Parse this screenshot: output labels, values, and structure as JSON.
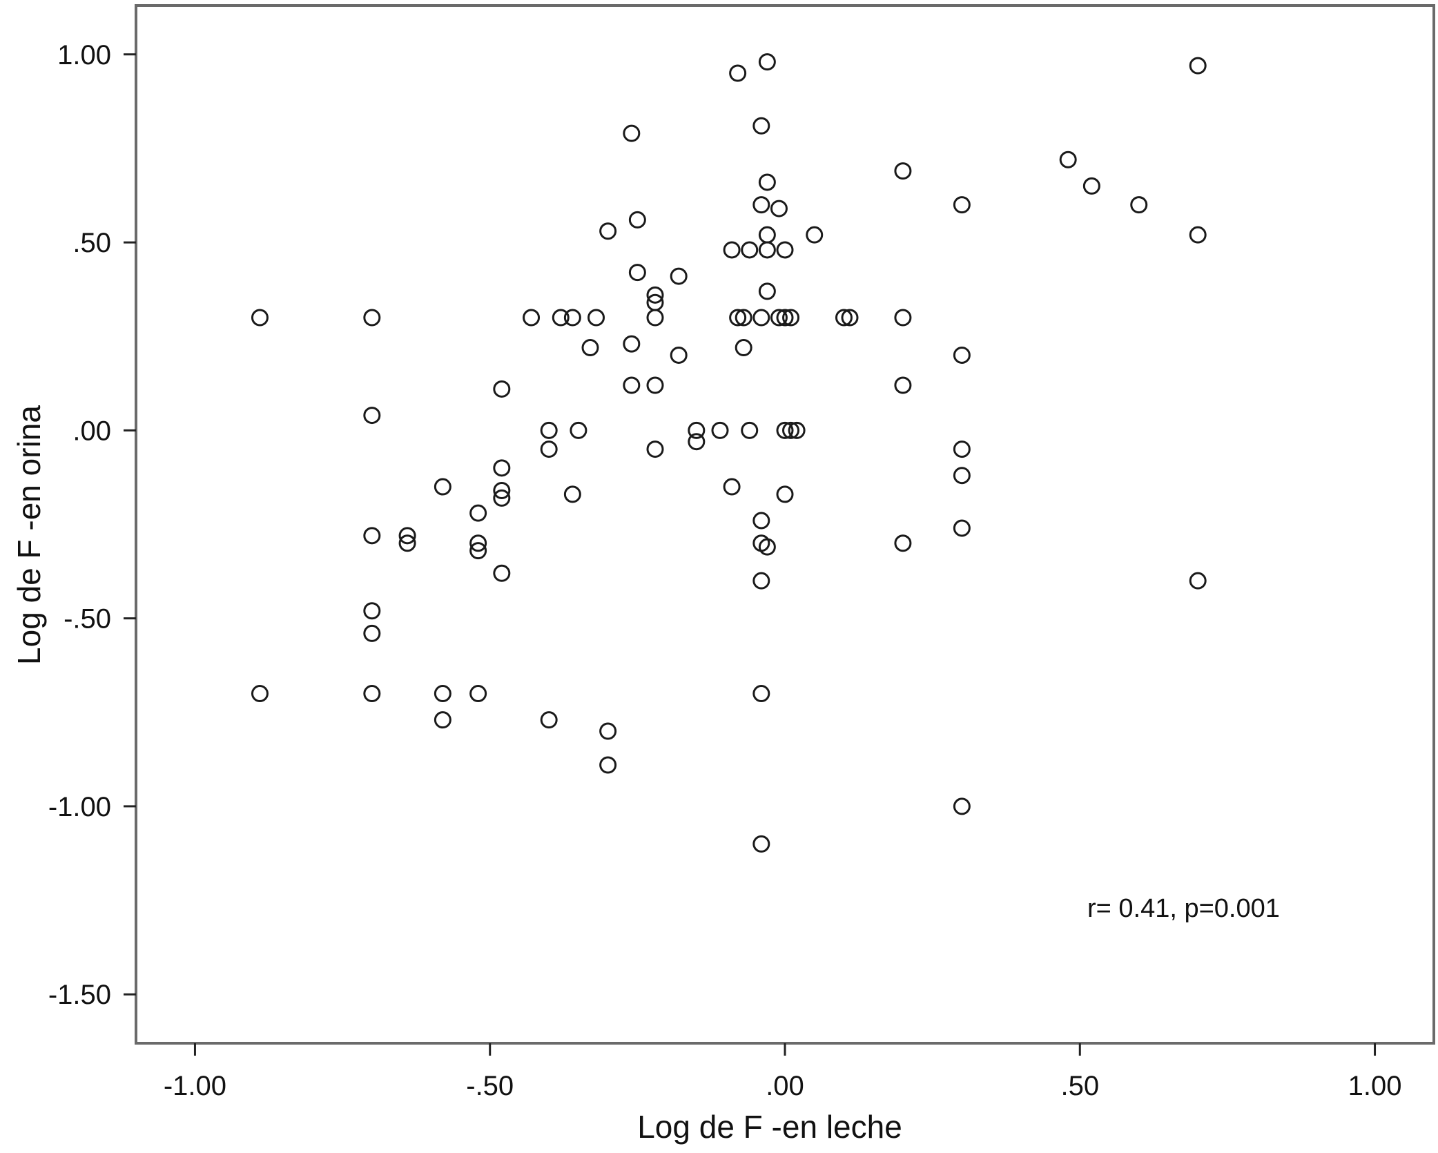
{
  "chart_data": {
    "type": "scatter",
    "xlabel": "Log de F -en leche",
    "ylabel": "Log de F -en orina",
    "xlim": [
      -1.1,
      1.1
    ],
    "ylim": [
      -1.63,
      1.13
    ],
    "x_ticks": [
      -1.0,
      -0.5,
      0.0,
      0.5,
      1.0
    ],
    "x_tick_labels": [
      "-1.00",
      "-.50",
      ".00",
      ".50",
      "1.00"
    ],
    "y_ticks": [
      1.0,
      0.5,
      0.0,
      -0.5,
      -1.0,
      -1.5
    ],
    "y_tick_labels": [
      "1.00",
      ".50",
      ".00",
      "-.50",
      "-1.00",
      "-1.50"
    ],
    "annotation": "r= 0.41, p=0.001",
    "grid": false,
    "marker": "open-circle",
    "colors": {
      "marker": "#1a1a1a",
      "frame": "#6a6a6a",
      "text": "#111111"
    },
    "points": [
      [
        -0.89,
        0.3
      ],
      [
        -0.89,
        -0.7
      ],
      [
        -0.7,
        0.3
      ],
      [
        -0.7,
        0.04
      ],
      [
        -0.7,
        -0.28
      ],
      [
        -0.7,
        -0.48
      ],
      [
        -0.7,
        -0.54
      ],
      [
        -0.7,
        -0.7
      ],
      [
        -0.64,
        -0.28
      ],
      [
        -0.64,
        -0.3
      ],
      [
        -0.58,
        -0.15
      ],
      [
        -0.58,
        -0.7
      ],
      [
        -0.58,
        -0.77
      ],
      [
        -0.52,
        -0.22
      ],
      [
        -0.52,
        -0.3
      ],
      [
        -0.52,
        -0.32
      ],
      [
        -0.52,
        -0.7
      ],
      [
        -0.48,
        0.11
      ],
      [
        -0.48,
        -0.1
      ],
      [
        -0.48,
        -0.16
      ],
      [
        -0.48,
        -0.18
      ],
      [
        -0.48,
        -0.38
      ],
      [
        -0.43,
        0.3
      ],
      [
        -0.4,
        0.0
      ],
      [
        -0.4,
        -0.05
      ],
      [
        -0.4,
        -0.77
      ],
      [
        -0.38,
        0.3
      ],
      [
        -0.36,
        0.3
      ],
      [
        -0.36,
        -0.17
      ],
      [
        -0.35,
        0.0
      ],
      [
        -0.33,
        0.22
      ],
      [
        -0.32,
        0.3
      ],
      [
        -0.3,
        0.53
      ],
      [
        -0.3,
        -0.8
      ],
      [
        -0.3,
        -0.89
      ],
      [
        -0.26,
        0.79
      ],
      [
        -0.26,
        0.23
      ],
      [
        -0.26,
        0.12
      ],
      [
        -0.25,
        0.56
      ],
      [
        -0.25,
        0.42
      ],
      [
        -0.22,
        0.36
      ],
      [
        -0.22,
        0.34
      ],
      [
        -0.22,
        0.3
      ],
      [
        -0.22,
        0.12
      ],
      [
        -0.22,
        -0.05
      ],
      [
        -0.18,
        0.41
      ],
      [
        -0.18,
        0.2
      ],
      [
        -0.15,
        0.0
      ],
      [
        -0.15,
        -0.03
      ],
      [
        -0.11,
        0.0
      ],
      [
        -0.09,
        -0.15
      ],
      [
        -0.09,
        0.48
      ],
      [
        -0.08,
        0.95
      ],
      [
        -0.08,
        0.3
      ],
      [
        -0.07,
        0.3
      ],
      [
        -0.07,
        0.22
      ],
      [
        -0.06,
        0.0
      ],
      [
        -0.06,
        0.48
      ],
      [
        -0.04,
        0.81
      ],
      [
        -0.04,
        0.6
      ],
      [
        -0.04,
        0.3
      ],
      [
        -0.04,
        -0.24
      ],
      [
        -0.04,
        -0.3
      ],
      [
        -0.04,
        -0.4
      ],
      [
        -0.04,
        -0.7
      ],
      [
        -0.04,
        -1.1
      ],
      [
        -0.03,
        0.98
      ],
      [
        -0.03,
        0.66
      ],
      [
        -0.03,
        0.52
      ],
      [
        -0.03,
        0.48
      ],
      [
        -0.03,
        0.37
      ],
      [
        -0.03,
        -0.31
      ],
      [
        -0.01,
        0.59
      ],
      [
        -0.01,
        0.3
      ],
      [
        0.0,
        0.48
      ],
      [
        0.0,
        0.3
      ],
      [
        0.0,
        0.0
      ],
      [
        0.0,
        -0.17
      ],
      [
        0.01,
        0.3
      ],
      [
        0.01,
        0.0
      ],
      [
        0.02,
        0.0
      ],
      [
        0.05,
        0.52
      ],
      [
        0.1,
        0.3
      ],
      [
        0.11,
        0.3
      ],
      [
        0.2,
        0.69
      ],
      [
        0.2,
        0.3
      ],
      [
        0.2,
        0.12
      ],
      [
        0.2,
        -0.3
      ],
      [
        0.3,
        0.6
      ],
      [
        0.3,
        0.2
      ],
      [
        0.3,
        -0.05
      ],
      [
        0.3,
        -0.12
      ],
      [
        0.3,
        -0.26
      ],
      [
        0.3,
        -1.0
      ],
      [
        0.48,
        0.72
      ],
      [
        0.52,
        0.65
      ],
      [
        0.6,
        0.6
      ],
      [
        0.7,
        0.97
      ],
      [
        0.7,
        0.52
      ],
      [
        0.7,
        -0.4
      ]
    ]
  }
}
